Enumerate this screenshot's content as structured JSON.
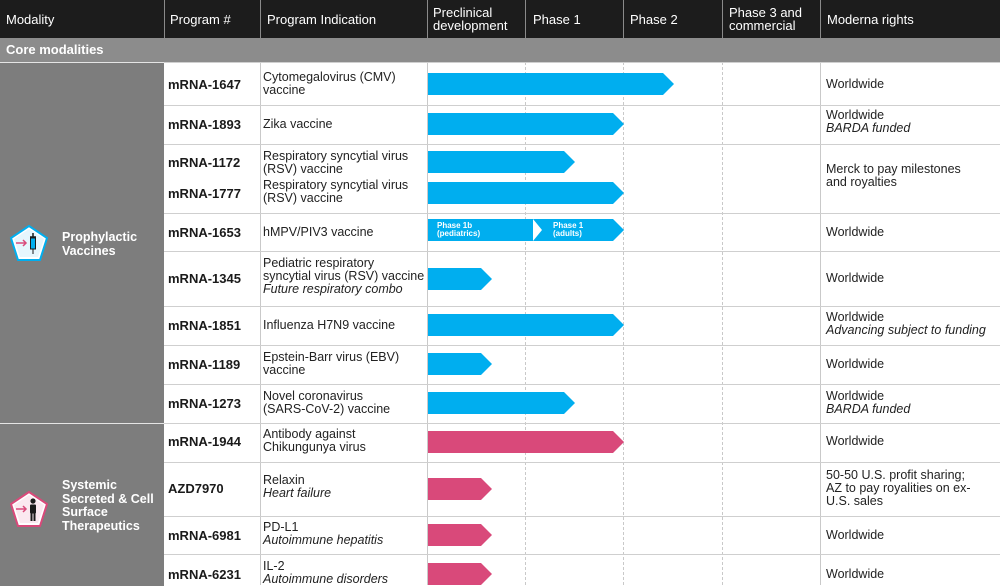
{
  "header": {
    "modality": "Modality",
    "program": "Program #",
    "indication": "Program Indication",
    "preclinical_1": "Preclinical",
    "preclinical_2": "development",
    "phase1": "Phase 1",
    "phase2": "Phase 2",
    "phase3_1": "Phase 3 and",
    "phase3_2": "commercial",
    "rights": "Moderna rights"
  },
  "section": {
    "title": "Core modalities"
  },
  "groups": [
    {
      "label_1": "Prophylactic",
      "label_2": "Vaccines",
      "icon": "syringe-icon",
      "color": "#00aeef"
    },
    {
      "label_1": "Systemic",
      "label_2": "Secreted & Cell",
      "label_3": "Surface",
      "label_4": "Therapeutics",
      "icon": "person-icon",
      "color": "#d9497a"
    }
  ],
  "programs": [
    {
      "program": "mRNA-1647",
      "indication_1": "Cytomegalovirus (CMV)",
      "indication_2": "vaccine",
      "rights": "Worldwide",
      "stage": "Phase 2"
    },
    {
      "program": "mRNA-1893",
      "indication_1": "Zika vaccine",
      "rights": "Worldwide",
      "rights_note": "BARDA funded",
      "stage": "Phase 1"
    },
    {
      "program": "mRNA-1172",
      "indication_1": "Respiratory syncytial virus",
      "indication_2": "(RSV) vaccine",
      "stage": "Phase 1"
    },
    {
      "program": "mRNA-1777",
      "indication_1": "Respiratory syncytial virus",
      "indication_2": "(RSV) vaccine",
      "stage": "Phase 1"
    },
    {
      "program": "mRNA-1653",
      "indication_1": "hMPV/PIV3 vaccine",
      "rights": "Worldwide",
      "stage": "Phase 1",
      "segment_1_line_1": "Phase 1b",
      "segment_1_line_2": "(pediatrics)",
      "segment_2_line_1": "Phase 1",
      "segment_2_line_2": "(adults)"
    },
    {
      "program": "mRNA-1345",
      "indication_1": "Pediatric respiratory",
      "indication_2": "syncytial virus (RSV) vaccine",
      "indication_note": "Future respiratory combo",
      "rights": "Worldwide",
      "stage": "Preclinical development"
    },
    {
      "program": "mRNA-1851",
      "indication_1": "Influenza H7N9 vaccine",
      "rights": "Worldwide",
      "rights_note": "Advancing subject to funding",
      "stage": "Phase 1"
    },
    {
      "program": "mRNA-1189",
      "indication_1": "Epstein-Barr virus (EBV)",
      "indication_2": "vaccine",
      "rights": "Worldwide",
      "stage": "Preclinical development"
    },
    {
      "program": "mRNA-1273",
      "indication_1": "Novel coronavirus",
      "indication_2": "(SARS-CoV-2) vaccine",
      "rights": "Worldwide",
      "rights_note": "BARDA funded",
      "stage": "Phase 1"
    },
    {
      "program": "mRNA-1944",
      "indication_1": "Antibody against",
      "indication_2": "Chikungunya virus",
      "rights": "Worldwide",
      "stage": "Phase 1"
    },
    {
      "program": "AZD7970",
      "indication_1": "Relaxin",
      "indication_note": "Heart failure",
      "rights_1": "50-50 U.S. profit sharing;",
      "rights_2": "AZ to pay royalities on ex-",
      "rights_3": "U.S. sales",
      "stage": "Preclinical development"
    },
    {
      "program": "mRNA-6981",
      "indication_1": "PD-L1",
      "indication_note": "Autoimmune hepatitis",
      "rights": "Worldwide",
      "stage": "Preclinical development"
    },
    {
      "program": "mRNA-6231",
      "indication_1": "IL-2",
      "indication_note": "Autoimmune disorders",
      "rights": "Worldwide",
      "stage": "Preclinical development"
    }
  ],
  "shared_rights": {
    "line_1": "Merck to pay milestones",
    "line_2": "and royalties"
  },
  "colors": {
    "header_bg": "#1c1c1c",
    "section_bg": "#8c8c8c",
    "group_bg": "#7d7d7d",
    "vaccine_bar": "#00aeef",
    "therapeutic_bar": "#d9497a"
  }
}
